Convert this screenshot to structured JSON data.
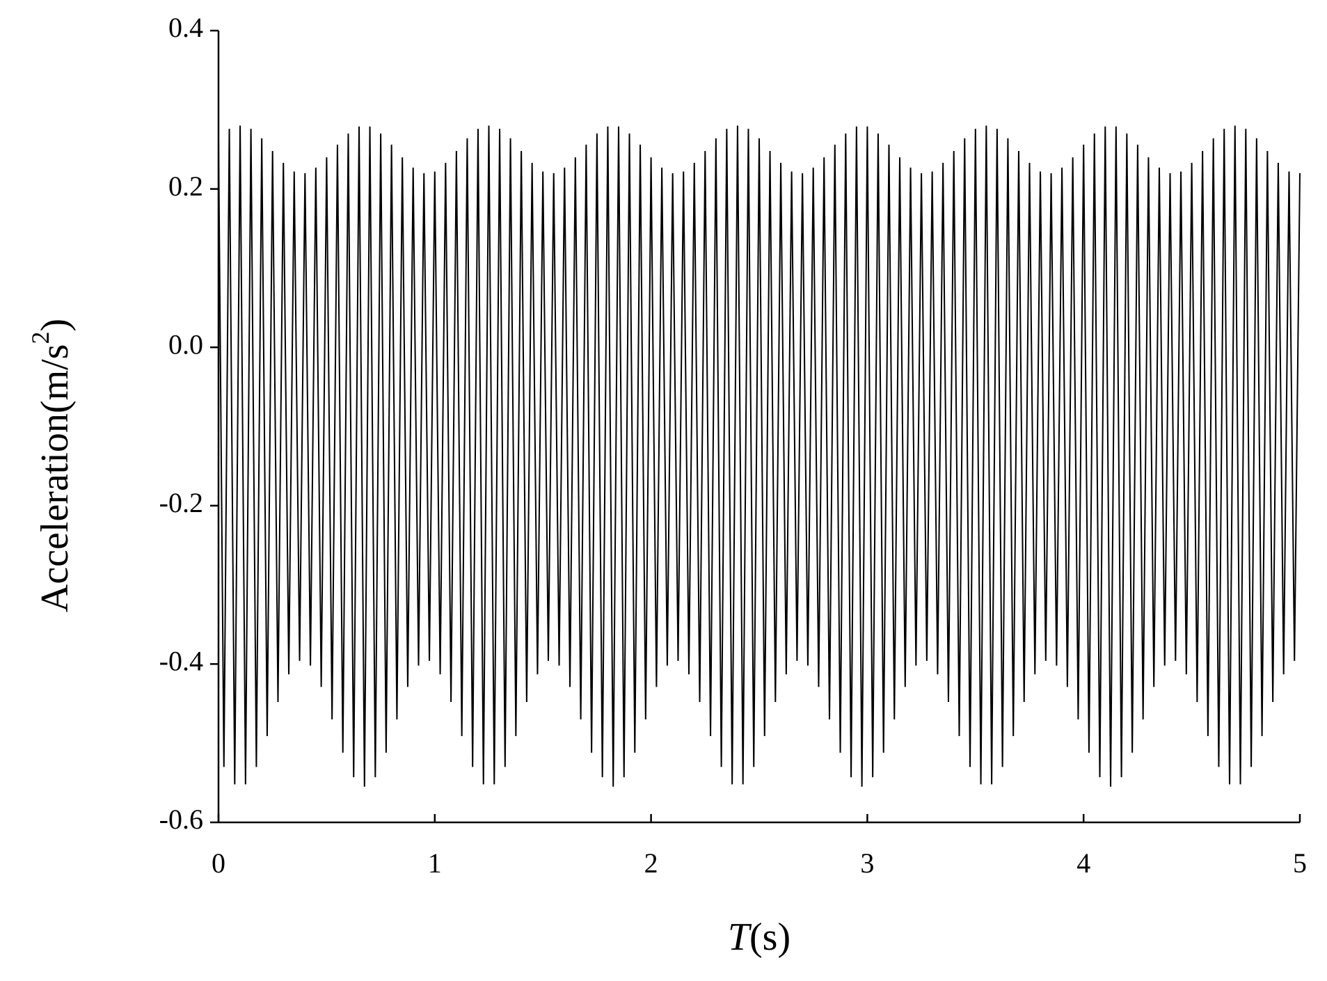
{
  "chart_data": {
    "type": "line",
    "ylabel": {
      "text": "Acceleration(m/s",
      "sup": "2",
      "end": ")"
    },
    "xlabel": {
      "text": "T",
      "end": "(s)"
    },
    "xlim": [
      0,
      5
    ],
    "xticks": [
      0,
      1,
      2,
      3,
      4,
      5
    ],
    "ylim": [
      -0.6,
      0.4
    ],
    "yticks": [
      -0.6,
      -0.4,
      -0.2,
      {
        "value": 0,
        "label": "0.0"
      },
      0.2,
      0.4
    ],
    "color": "#000000",
    "x": [
      0,
      0.025,
      0.05,
      0.075,
      0.1,
      0.125,
      0.15,
      0.175,
      0.2,
      0.225,
      0.25,
      0.275,
      0.3,
      0.325,
      0.35,
      0.375,
      0.4,
      0.425,
      0.45,
      0.475,
      0.5,
      0.525,
      0.55,
      0.575,
      0.6,
      0.625,
      0.65,
      0.675,
      0.7,
      0.725,
      0.75,
      0.775,
      0.8,
      0.825,
      0.85,
      0.875,
      0.9,
      0.925,
      0.95,
      0.975,
      1,
      1.025,
      1.05,
      1.075,
      1.1,
      1.125,
      1.15,
      1.175,
      1.2,
      1.225,
      1.25,
      1.275,
      1.3,
      1.325,
      1.35,
      1.375,
      1.4,
      1.425,
      1.45,
      1.475,
      1.5,
      1.525,
      1.55,
      1.575,
      1.6,
      1.625,
      1.65,
      1.675,
      1.7,
      1.725,
      1.75,
      1.775,
      1.8,
      1.825,
      1.85,
      1.875,
      1.9,
      1.925,
      1.95,
      1.975,
      2,
      2.025,
      2.05,
      2.075,
      2.1,
      2.125,
      2.15,
      2.175,
      2.2,
      2.225,
      2.25,
      2.275,
      2.3,
      2.325,
      2.35,
      2.375,
      2.4,
      2.425,
      2.45,
      2.475,
      2.5,
      2.525,
      2.55,
      2.575,
      2.6,
      2.625,
      2.65,
      2.675,
      2.7,
      2.725,
      2.75,
      2.775,
      2.8,
      2.825,
      2.85,
      2.875,
      2.9,
      2.925,
      2.95,
      2.975,
      3,
      3.025,
      3.05,
      3.075,
      3.1,
      3.125,
      3.15,
      3.175,
      3.2,
      3.225,
      3.25,
      3.275,
      3.3,
      3.325,
      3.35,
      3.375,
      3.4,
      3.425,
      3.45,
      3.475,
      3.5,
      3.525,
      3.55,
      3.575,
      3.6,
      3.625,
      3.65,
      3.675,
      3.7,
      3.725,
      3.75,
      3.775,
      3.8,
      3.825,
      3.85,
      3.875,
      3.9,
      3.925,
      3.95,
      3.975,
      4,
      4.025,
      4.05,
      4.075,
      4.1,
      4.125,
      4.15,
      4.175,
      4.2,
      4.225,
      4.25,
      4.275,
      4.3,
      4.325,
      4.35,
      4.375,
      4.4,
      4.425,
      4.45,
      4.475,
      4.5,
      4.525,
      4.55,
      4.575,
      4.6,
      4.625,
      4.65,
      4.675,
      4.7,
      4.725,
      4.75,
      4.775,
      4.8,
      4.825,
      4.85,
      4.875,
      4.9,
      4.925,
      4.95,
      4.975,
      5
    ],
    "values": [
      0.264,
      -0.53,
      0.276,
      -0.552,
      0.28,
      -0.552,
      0.276,
      -0.53,
      0.264,
      -0.491,
      0.248,
      -0.448,
      0.233,
      -0.413,
      0.222,
      -0.396,
      0.22,
      -0.402,
      0.227,
      -0.429,
      0.24,
      -0.47,
      0.256,
      -0.512,
      0.27,
      -0.543,
      0.279,
      -0.555,
      0.279,
      -0.543,
      0.27,
      -0.512,
      0.256,
      -0.47,
      0.24,
      -0.429,
      0.227,
      -0.402,
      0.22,
      -0.396,
      0.222,
      -0.413,
      0.233,
      -0.448,
      0.248,
      -0.491,
      0.264,
      -0.53,
      0.276,
      -0.552,
      0.28,
      -0.552,
      0.276,
      -0.53,
      0.264,
      -0.491,
      0.248,
      -0.448,
      0.233,
      -0.413,
      0.222,
      -0.396,
      0.22,
      -0.402,
      0.227,
      -0.429,
      0.24,
      -0.47,
      0.256,
      -0.512,
      0.27,
      -0.543,
      0.279,
      -0.555,
      0.279,
      -0.543,
      0.27,
      -0.512,
      0.256,
      -0.47,
      0.24,
      -0.429,
      0.227,
      -0.402,
      0.22,
      -0.396,
      0.222,
      -0.413,
      0.233,
      -0.448,
      0.248,
      -0.491,
      0.264,
      -0.53,
      0.276,
      -0.552,
      0.28,
      -0.552,
      0.276,
      -0.53,
      0.264,
      -0.491,
      0.248,
      -0.448,
      0.233,
      -0.413,
      0.222,
      -0.396,
      0.22,
      -0.402,
      0.227,
      -0.429,
      0.24,
      -0.47,
      0.256,
      -0.512,
      0.27,
      -0.543,
      0.279,
      -0.555,
      0.279,
      -0.543,
      0.27,
      -0.512,
      0.256,
      -0.47,
      0.24,
      -0.429,
      0.227,
      -0.402,
      0.22,
      -0.396,
      0.222,
      -0.413,
      0.233,
      -0.448,
      0.248,
      -0.491,
      0.264,
      -0.53,
      0.276,
      -0.552,
      0.28,
      -0.552,
      0.276,
      -0.53,
      0.264,
      -0.491,
      0.248,
      -0.448,
      0.233,
      -0.413,
      0.222,
      -0.396,
      0.22,
      -0.402,
      0.227,
      -0.429,
      0.24,
      -0.47,
      0.256,
      -0.512,
      0.27,
      -0.543,
      0.279,
      -0.555,
      0.279,
      -0.543,
      0.27,
      -0.512,
      0.256,
      -0.47,
      0.24,
      -0.429,
      0.227,
      -0.402,
      0.22,
      -0.396,
      0.222,
      -0.413,
      0.233,
      -0.448,
      0.248,
      -0.491,
      0.264,
      -0.53,
      0.276,
      -0.552,
      0.28,
      -0.552,
      0.276,
      -0.53,
      0.264,
      -0.491,
      0.248,
      -0.448,
      0.233,
      -0.413,
      0.222,
      -0.396,
      0.22
    ]
  }
}
